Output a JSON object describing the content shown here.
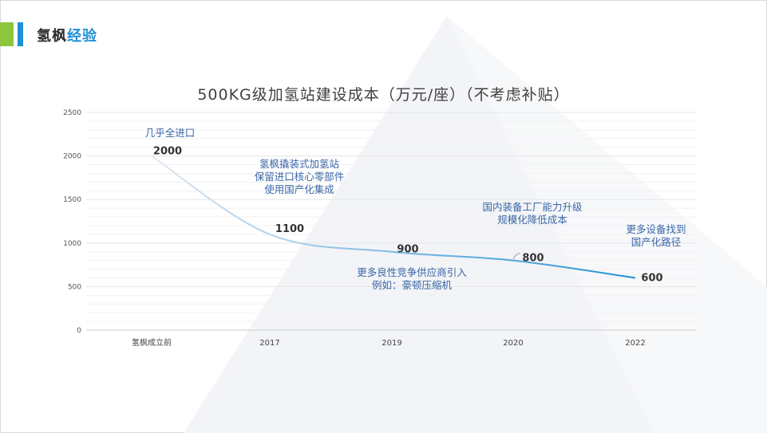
{
  "header": {
    "title_part1": "氢枫",
    "title_part2": "经验",
    "accent_colors": [
      "#8cc63f",
      "#1f8fd6"
    ]
  },
  "chart_data": {
    "type": "line",
    "title": "500KG级加氢站建设成本（万元/座）（不考虑补贴）",
    "categories": [
      "氢枫成立前",
      "2017",
      "2019",
      "2020",
      "2022"
    ],
    "values": [
      2000,
      1100,
      900,
      800,
      600
    ],
    "data_labels": [
      "2000",
      "1100",
      "900",
      "800",
      "600"
    ],
    "ylim": [
      0,
      2500
    ],
    "yticks": [
      0,
      500,
      1000,
      1500,
      2000,
      2500
    ],
    "grid": true,
    "line_colors": [
      "#dfe6f0",
      "#1f8fd6"
    ],
    "annotations": [
      {
        "point": 0,
        "lines": [
          "几乎全进口"
        ]
      },
      {
        "point": 1,
        "lines": [
          "氢枫撬装式加氢站",
          "保留进口核心零部件",
          "使用国产化集成"
        ]
      },
      {
        "point": 2,
        "lines": [
          "更多良性竞争供应商引入",
          "例如：豪顿压缩机"
        ]
      },
      {
        "point": 3,
        "lines": [
          "国内装备工厂能力升级",
          "规模化降低成本"
        ]
      },
      {
        "point": 4,
        "lines": [
          "更多设备找到",
          "国产化路径"
        ]
      }
    ]
  }
}
